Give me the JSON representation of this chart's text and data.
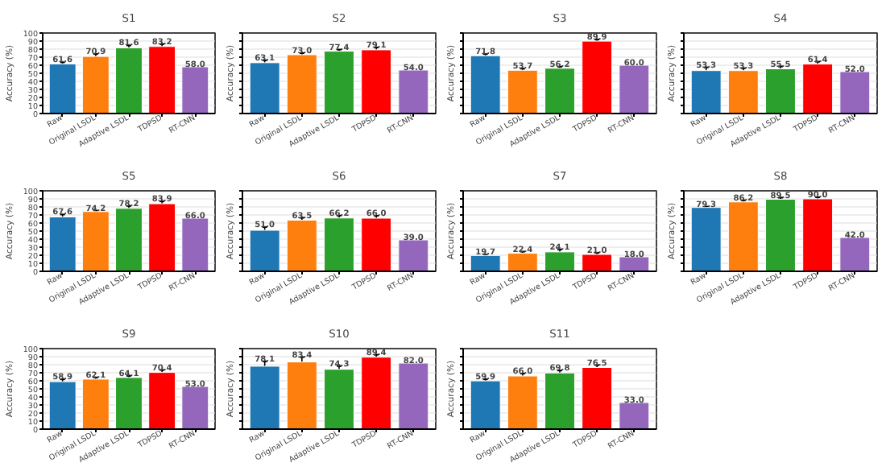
{
  "chart_data": [
    {
      "type": "bar",
      "title": "S1",
      "ylabel": "Accuracy (%)",
      "categories": [
        "Raw",
        "Original LSDL",
        "Adaptive LSDL",
        "TDPSD",
        "RT-CNN"
      ],
      "values": [
        61.6,
        70.9,
        81.6,
        83.2,
        58.0
      ],
      "value_labels": [
        "61.6",
        "70.9",
        "81.6",
        "83.2",
        "58.0"
      ],
      "errors": [
        2,
        3,
        3,
        3,
        null
      ],
      "colors": [
        "#1f77b4",
        "#ff7f0e",
        "#2ca02c",
        "#ff0000",
        "#9467bd"
      ],
      "ylim": [
        0,
        100
      ],
      "yticks": [
        0,
        10,
        20,
        30,
        40,
        50,
        60,
        70,
        80,
        90,
        100
      ],
      "grid": "y"
    },
    {
      "type": "bar",
      "title": "S2",
      "ylabel": "Accuracy (%)",
      "categories": [
        "Raw",
        "Original LSDL",
        "Adaptive LSDL",
        "TDPSD",
        "RT-CNN"
      ],
      "values": [
        63.1,
        73.0,
        77.4,
        79.1,
        54.0
      ],
      "value_labels": [
        "63.1",
        "73.0",
        "77.4",
        "79.1",
        "54.0"
      ],
      "errors": [
        3,
        2,
        2,
        3,
        null
      ],
      "colors": [
        "#1f77b4",
        "#ff7f0e",
        "#2ca02c",
        "#ff0000",
        "#9467bd"
      ],
      "ylim": [
        0,
        100
      ],
      "yticks": [
        0,
        10,
        20,
        30,
        40,
        50,
        60,
        70,
        80,
        90,
        100
      ],
      "grid": "y",
      "tick_labels": "x"
    },
    {
      "type": "bar",
      "title": "S3",
      "ylabel": "Accuracy (%)",
      "categories": [
        "Raw",
        "Original LSDL",
        "Adaptive LSDL",
        "TDPSD",
        "RT-CNN"
      ],
      "values": [
        71.8,
        53.7,
        56.2,
        89.9,
        60.0
      ],
      "value_labels": [
        "71.8",
        "53.7",
        "56.2",
        "89.9",
        "60.0"
      ],
      "errors": [
        2,
        2,
        2,
        2,
        null
      ],
      "colors": [
        "#1f77b4",
        "#ff7f0e",
        "#2ca02c",
        "#ff0000",
        "#9467bd"
      ],
      "ylim": [
        0,
        100
      ],
      "yticks": [
        0,
        10,
        20,
        30,
        40,
        50,
        60,
        70,
        80,
        90,
        100
      ],
      "grid": "y",
      "tick_labels": "x"
    },
    {
      "type": "bar",
      "title": "S4",
      "ylabel": "Accuracy (%)",
      "categories": [
        "Raw",
        "Original LSDL",
        "Adaptive LSDL",
        "TDPSD",
        "RT-CNN"
      ],
      "values": [
        53.3,
        53.3,
        55.5,
        61.4,
        52.0
      ],
      "value_labels": [
        "53.3",
        "53.3",
        "55.5",
        "61.4",
        "52.0"
      ],
      "errors": [
        4,
        3,
        3,
        3,
        null
      ],
      "colors": [
        "#1f77b4",
        "#ff7f0e",
        "#2ca02c",
        "#ff0000",
        "#9467bd"
      ],
      "ylim": [
        0,
        100
      ],
      "yticks": [
        0,
        10,
        20,
        30,
        40,
        50,
        60,
        70,
        80,
        90,
        100
      ],
      "grid": "y",
      "tick_labels": "x"
    },
    {
      "type": "bar",
      "title": "S5",
      "ylabel": "Accuracy (%)",
      "categories": [
        "Raw",
        "Original LSDL",
        "Adaptive LSDL",
        "TDPSD",
        "RT-CNN"
      ],
      "values": [
        67.6,
        74.2,
        78.2,
        83.9,
        66.0
      ],
      "value_labels": [
        "67.6",
        "74.2",
        "78.2",
        "83.9",
        "66.0"
      ],
      "errors": [
        3,
        1,
        3,
        3,
        null
      ],
      "colors": [
        "#1f77b4",
        "#ff7f0e",
        "#2ca02c",
        "#ff0000",
        "#9467bd"
      ],
      "ylim": [
        0,
        100
      ],
      "yticks": [
        0,
        10,
        20,
        30,
        40,
        50,
        60,
        70,
        80,
        90,
        100
      ],
      "grid": "y"
    },
    {
      "type": "bar",
      "title": "S6",
      "ylabel": "Accuracy (%)",
      "categories": [
        "Raw",
        "Original LSDL",
        "Adaptive LSDL",
        "TDPSD",
        "RT-CNN"
      ],
      "values": [
        51.0,
        63.5,
        66.2,
        66.0,
        39.0
      ],
      "value_labels": [
        "51.0",
        "63.5",
        "66.2",
        "66.0",
        "39.0"
      ],
      "errors": [
        4,
        3,
        3,
        3,
        null
      ],
      "colors": [
        "#1f77b4",
        "#ff7f0e",
        "#2ca02c",
        "#ff0000",
        "#9467bd"
      ],
      "ylim": [
        0,
        100
      ],
      "yticks": [
        0,
        10,
        20,
        30,
        40,
        50,
        60,
        70,
        80,
        90,
        100
      ],
      "grid": "y",
      "tick_labels": "x"
    },
    {
      "type": "bar",
      "title": "S7",
      "ylabel": "Accuracy (%)",
      "categories": [
        "Raw",
        "Original LSDL",
        "Adaptive LSDL",
        "TDPSD",
        "RT-CNN"
      ],
      "values": [
        19.7,
        22.4,
        24.1,
        21.0,
        18.0
      ],
      "value_labels": [
        "19.7",
        "22.4",
        "24.1",
        "21.0",
        "18.0"
      ],
      "errors": [
        1,
        2,
        3,
        2,
        null
      ],
      "colors": [
        "#1f77b4",
        "#ff7f0e",
        "#2ca02c",
        "#ff0000",
        "#9467bd"
      ],
      "ylim": [
        0,
        100
      ],
      "yticks": [
        0,
        10,
        20,
        30,
        40,
        50,
        60,
        70,
        80,
        90,
        100
      ],
      "grid": "y",
      "tick_labels": "x"
    },
    {
      "type": "bar",
      "title": "S8",
      "ylabel": "Accuracy (%)",
      "categories": [
        "Raw",
        "Original LSDL",
        "Adaptive LSDL",
        "TDPSD",
        "RT-CNN"
      ],
      "values": [
        79.3,
        86.2,
        89.5,
        90.0,
        42.0
      ],
      "value_labels": [
        "79.3",
        "86.2",
        "89.5",
        "90.0",
        "42.0"
      ],
      "errors": [
        1,
        2,
        2,
        2,
        null
      ],
      "colors": [
        "#1f77b4",
        "#ff7f0e",
        "#2ca02c",
        "#ff0000",
        "#9467bd"
      ],
      "ylim": [
        0,
        100
      ],
      "yticks": [
        0,
        10,
        20,
        30,
        40,
        50,
        60,
        70,
        80,
        90,
        100
      ],
      "grid": "y",
      "tick_labels": "x"
    },
    {
      "type": "bar",
      "title": "S9",
      "ylabel": "Accuracy (%)",
      "categories": [
        "Raw",
        "Original LSDL",
        "Adaptive LSDL",
        "TDPSD",
        "RT-CNN"
      ],
      "values": [
        58.9,
        62.1,
        64.1,
        70.4,
        53.0
      ],
      "value_labels": [
        "58.9",
        "62.1",
        "64.1",
        "70.4",
        "53.0"
      ],
      "errors": [
        3,
        2,
        2,
        3,
        null
      ],
      "colors": [
        "#1f77b4",
        "#ff7f0e",
        "#2ca02c",
        "#ff0000",
        "#9467bd"
      ],
      "ylim": [
        0,
        100
      ],
      "yticks": [
        0,
        10,
        20,
        30,
        40,
        50,
        60,
        70,
        80,
        90,
        100
      ],
      "grid": "y"
    },
    {
      "type": "bar",
      "title": "S10",
      "ylabel": "Accuracy (%)",
      "categories": [
        "Raw",
        "Original LSDL",
        "Adaptive LSDL",
        "TDPSD",
        "RT-CNN"
      ],
      "values": [
        78.1,
        83.4,
        74.3,
        89.4,
        82.0
      ],
      "value_labels": [
        "78.1",
        "83.4",
        "74.3",
        "89.4",
        "82.0"
      ],
      "errors": [
        6,
        6,
        4,
        3,
        null
      ],
      "colors": [
        "#1f77b4",
        "#ff7f0e",
        "#2ca02c",
        "#ff0000",
        "#9467bd"
      ],
      "ylim": [
        0,
        100
      ],
      "yticks": [
        0,
        10,
        20,
        30,
        40,
        50,
        60,
        70,
        80,
        90,
        100
      ],
      "grid": "y",
      "tick_labels": "x"
    },
    {
      "type": "bar",
      "title": "S11",
      "ylabel": "Accuracy (%)",
      "categories": [
        "Raw",
        "Original LSDL",
        "Adaptive LSDL",
        "TDPSD",
        "RT-CNN"
      ],
      "values": [
        59.9,
        66.0,
        69.8,
        76.5,
        33.0
      ],
      "value_labels": [
        "59.9",
        "66.0",
        "69.8",
        "76.5",
        "33.0"
      ],
      "errors": [
        2,
        3,
        3,
        3,
        null
      ],
      "colors": [
        "#1f77b4",
        "#ff7f0e",
        "#2ca02c",
        "#ff0000",
        "#9467bd"
      ],
      "ylim": [
        0,
        100
      ],
      "yticks": [
        0,
        10,
        20,
        30,
        40,
        50,
        60,
        70,
        80,
        90,
        100
      ],
      "grid": "y",
      "tick_labels": "x"
    }
  ]
}
